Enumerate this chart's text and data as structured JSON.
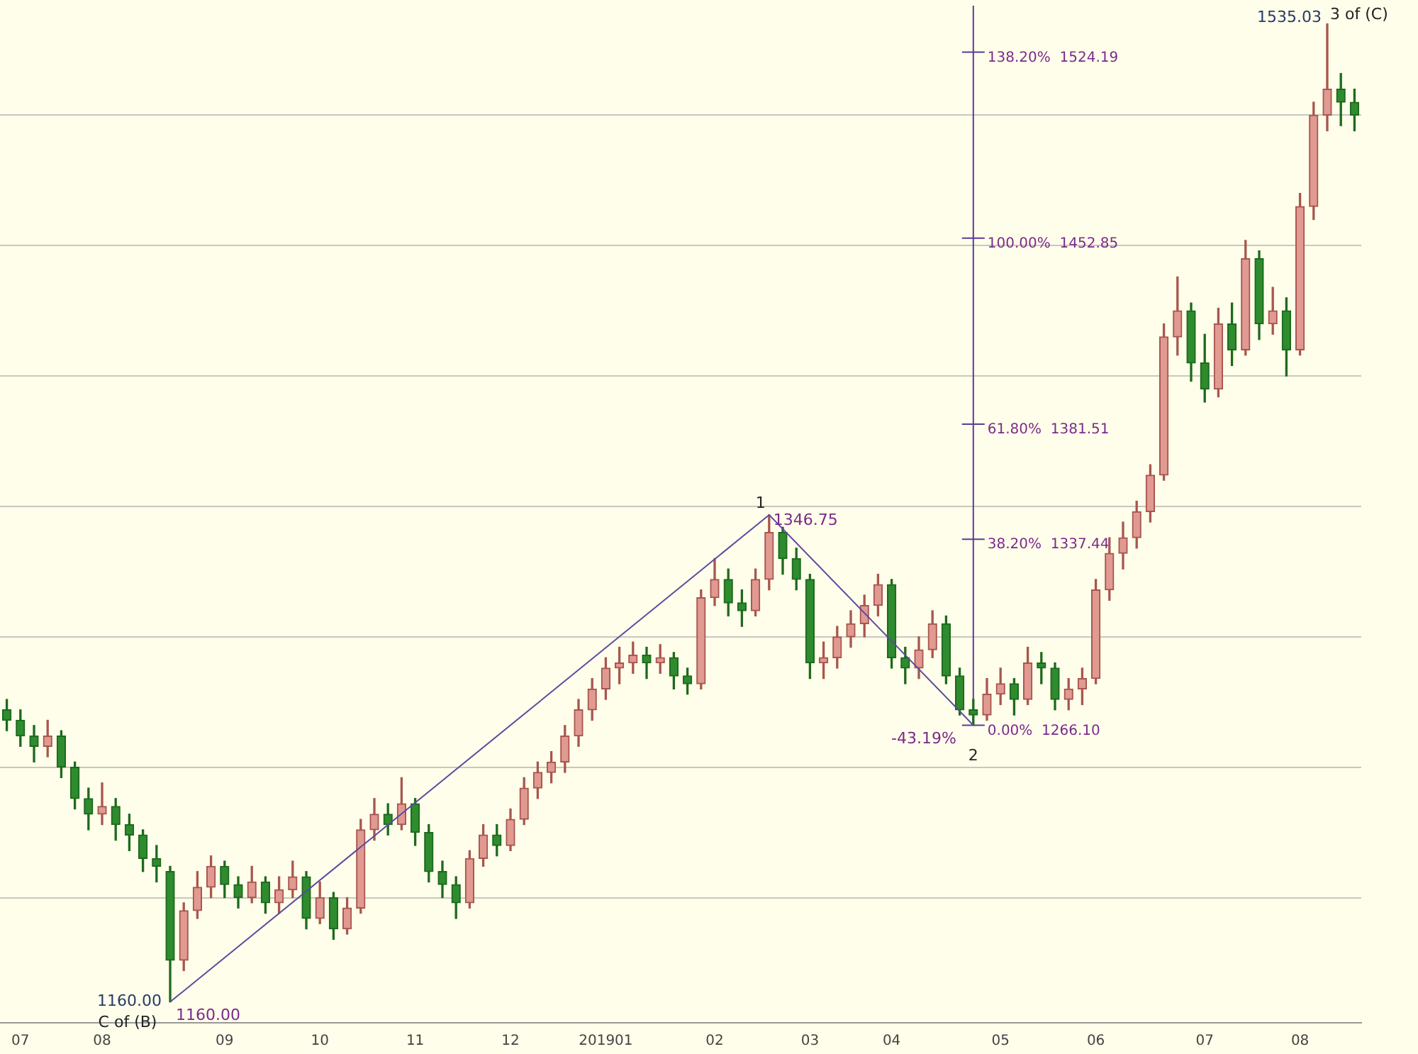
{
  "chart_data": {
    "type": "candlestick",
    "categories": [
      null,
      "07",
      null,
      null,
      null,
      null,
      null,
      "08",
      null,
      null,
      null,
      null,
      null,
      null,
      null,
      null,
      "09",
      null,
      null,
      null,
      null,
      null,
      null,
      "10",
      null,
      null,
      null,
      null,
      null,
      null,
      "11",
      null,
      null,
      null,
      null,
      null,
      null,
      "12",
      null,
      null,
      null,
      null,
      null,
      null,
      "201901",
      null,
      null,
      null,
      null,
      null,
      null,
      null,
      "02",
      null,
      null,
      null,
      null,
      null,
      null,
      "03",
      null,
      null,
      null,
      null,
      null,
      "04",
      null,
      null,
      null,
      null,
      null,
      null,
      null,
      "05",
      null,
      null,
      null,
      null,
      null,
      null,
      "06",
      null,
      null,
      null,
      null,
      null,
      null,
      null,
      "07",
      null,
      null,
      null,
      null,
      null,
      null,
      "08",
      null,
      null,
      null,
      null
    ],
    "ohlc": [
      [
        1272,
        1276,
        1264,
        1268
      ],
      [
        1268,
        1272,
        1258,
        1262
      ],
      [
        1262,
        1266,
        1252,
        1258
      ],
      [
        1258,
        1268,
        1254,
        1262
      ],
      [
        1262,
        1264,
        1246,
        1250
      ],
      [
        1250,
        1252,
        1234,
        1238
      ],
      [
        1238,
        1242,
        1226,
        1232
      ],
      [
        1232,
        1244,
        1228,
        1235
      ],
      [
        1235,
        1238,
        1222,
        1228
      ],
      [
        1228,
        1232,
        1218,
        1224
      ],
      [
        1224,
        1226,
        1210,
        1215
      ],
      [
        1215,
        1220,
        1206,
        1212
      ],
      [
        1210,
        1212,
        1160,
        1176
      ],
      [
        1176,
        1198,
        1172,
        1195
      ],
      [
        1195,
        1210,
        1192,
        1204
      ],
      [
        1204,
        1216,
        1200,
        1212
      ],
      [
        1212,
        1214,
        1200,
        1205
      ],
      [
        1205,
        1208,
        1196,
        1200
      ],
      [
        1200,
        1212,
        1198,
        1206
      ],
      [
        1206,
        1208,
        1194,
        1198
      ],
      [
        1198,
        1208,
        1194,
        1203
      ],
      [
        1203,
        1214,
        1200,
        1208
      ],
      [
        1208,
        1210,
        1188,
        1192
      ],
      [
        1192,
        1206,
        1190,
        1200
      ],
      [
        1200,
        1202,
        1184,
        1188
      ],
      [
        1188,
        1200,
        1186,
        1196
      ],
      [
        1196,
        1230,
        1194,
        1226
      ],
      [
        1226,
        1238,
        1222,
        1232
      ],
      [
        1232,
        1236,
        1224,
        1228
      ],
      [
        1228,
        1246,
        1226,
        1236
      ],
      [
        1236,
        1238,
        1220,
        1225
      ],
      [
        1225,
        1228,
        1206,
        1210
      ],
      [
        1210,
        1214,
        1200,
        1205
      ],
      [
        1205,
        1208,
        1192,
        1198
      ],
      [
        1198,
        1218,
        1196,
        1215
      ],
      [
        1215,
        1228,
        1212,
        1224
      ],
      [
        1224,
        1228,
        1216,
        1220
      ],
      [
        1220,
        1234,
        1218,
        1230
      ],
      [
        1230,
        1246,
        1228,
        1242
      ],
      [
        1242,
        1252,
        1238,
        1248
      ],
      [
        1248,
        1256,
        1244,
        1252
      ],
      [
        1252,
        1266,
        1248,
        1262
      ],
      [
        1262,
        1276,
        1258,
        1272
      ],
      [
        1272,
        1284,
        1268,
        1280
      ],
      [
        1280,
        1292,
        1276,
        1288
      ],
      [
        1288,
        1296,
        1282,
        1290
      ],
      [
        1290,
        1298,
        1286,
        1293
      ],
      [
        1293,
        1296,
        1284,
        1290
      ],
      [
        1290,
        1297,
        1286,
        1292
      ],
      [
        1292,
        1294,
        1280,
        1285
      ],
      [
        1285,
        1288,
        1278,
        1282
      ],
      [
        1282,
        1318,
        1280,
        1315
      ],
      [
        1315,
        1330,
        1312,
        1322
      ],
      [
        1322,
        1326,
        1308,
        1313
      ],
      [
        1313,
        1318,
        1304,
        1310
      ],
      [
        1310,
        1326,
        1308,
        1322
      ],
      [
        1322,
        1346.75,
        1318,
        1340
      ],
      [
        1340,
        1342,
        1324,
        1330
      ],
      [
        1330,
        1334,
        1318,
        1322
      ],
      [
        1322,
        1324,
        1284,
        1290
      ],
      [
        1290,
        1298,
        1284,
        1292
      ],
      [
        1292,
        1304,
        1288,
        1300
      ],
      [
        1300,
        1310,
        1296,
        1305
      ],
      [
        1305,
        1316,
        1300,
        1312
      ],
      [
        1312,
        1324,
        1308,
        1320
      ],
      [
        1320,
        1322,
        1288,
        1292
      ],
      [
        1292,
        1296,
        1282,
        1288
      ],
      [
        1288,
        1300,
        1284,
        1295
      ],
      [
        1295,
        1310,
        1292,
        1305
      ],
      [
        1305,
        1308,
        1282,
        1285
      ],
      [
        1285,
        1288,
        1270,
        1272
      ],
      [
        1272,
        1276,
        1266.1,
        1270
      ],
      [
        1270,
        1284,
        1268,
        1278
      ],
      [
        1278,
        1288,
        1274,
        1282
      ],
      [
        1282,
        1284,
        1270,
        1276
      ],
      [
        1276,
        1296,
        1274,
        1290
      ],
      [
        1290,
        1294,
        1282,
        1288
      ],
      [
        1288,
        1290,
        1272,
        1276
      ],
      [
        1276,
        1284,
        1272,
        1280
      ],
      [
        1280,
        1288,
        1274,
        1284
      ],
      [
        1284,
        1322,
        1282,
        1318
      ],
      [
        1318,
        1338,
        1314,
        1332
      ],
      [
        1332,
        1344,
        1326,
        1338
      ],
      [
        1338,
        1352,
        1334,
        1348
      ],
      [
        1348,
        1366,
        1344,
        1362
      ],
      [
        1362,
        1420,
        1360,
        1415
      ],
      [
        1415,
        1438,
        1408,
        1425
      ],
      [
        1425,
        1428,
        1398,
        1405
      ],
      [
        1405,
        1416,
        1390,
        1395
      ],
      [
        1395,
        1426,
        1392,
        1420
      ],
      [
        1420,
        1428,
        1404,
        1410
      ],
      [
        1410,
        1452,
        1408,
        1445
      ],
      [
        1445,
        1448,
        1414,
        1420
      ],
      [
        1420,
        1434,
        1416,
        1425
      ],
      [
        1425,
        1430,
        1400,
        1410
      ],
      [
        1410,
        1470,
        1408,
        1465
      ],
      [
        1465,
        1505,
        1460,
        1500
      ],
      [
        1500,
        1535.03,
        1494,
        1510
      ],
      [
        1510,
        1516,
        1496,
        1505
      ],
      [
        1505,
        1510,
        1494,
        1500
      ]
    ],
    "series": [
      {
        "type": "line",
        "color": "#5b4a9e",
        "values": [
          null,
          null,
          null,
          null,
          null,
          null,
          null,
          null,
          null,
          null,
          null,
          null,
          1160,
          null,
          null,
          null,
          null,
          null,
          null,
          null,
          null,
          null,
          null,
          null,
          null,
          null,
          null,
          null,
          null,
          null,
          null,
          null,
          null,
          null,
          null,
          null,
          null,
          null,
          null,
          null,
          null,
          null,
          null,
          null,
          null,
          null,
          null,
          null,
          null,
          null,
          null,
          null,
          null,
          null,
          null,
          null,
          1346.75,
          null,
          null,
          null,
          null,
          null,
          null,
          null,
          null,
          null,
          null,
          null,
          null,
          null,
          null,
          1266.1,
          null,
          null,
          null,
          null,
          null,
          null,
          null,
          null,
          null,
          null,
          null,
          null,
          null,
          null,
          null,
          null,
          null,
          null,
          null,
          null,
          null,
          null,
          null,
          null,
          null,
          null,
          null,
          null
        ]
      }
    ],
    "ylim": [
      1152,
      1542
    ],
    "yticks": [
      {
        "value": 1200,
        "label": null
      },
      {
        "value": 1250,
        "label": null
      },
      {
        "value": 1300,
        "label": null
      },
      {
        "value": 1350,
        "label": null
      },
      {
        "value": 1400,
        "label": null
      },
      {
        "value": 1450,
        "label": null
      },
      {
        "value": 1500,
        "label": null
      }
    ],
    "grid": "y",
    "tick_labels": "x",
    "legend": false,
    "ref_lines": [
      {
        "axis": "y",
        "value": 1266.1,
        "label": "0.00%  1266.10"
      },
      {
        "axis": "y",
        "value": 1337.44,
        "label": "38.20%  1337.44"
      },
      {
        "axis": "y",
        "value": 1381.51,
        "label": "61.80%  1381.51"
      },
      {
        "axis": "y",
        "value": 1452.85,
        "label": "100.00%  1452.85"
      },
      {
        "axis": "y",
        "value": 1524.19,
        "label": "138.20%  1524.19"
      }
    ],
    "annotations": [
      "1160.00",
      "C of (B)",
      "1160.00",
      "1",
      "1346.75",
      "2",
      "-43.19%",
      "1535.03",
      "3 of (C)"
    ]
  }
}
